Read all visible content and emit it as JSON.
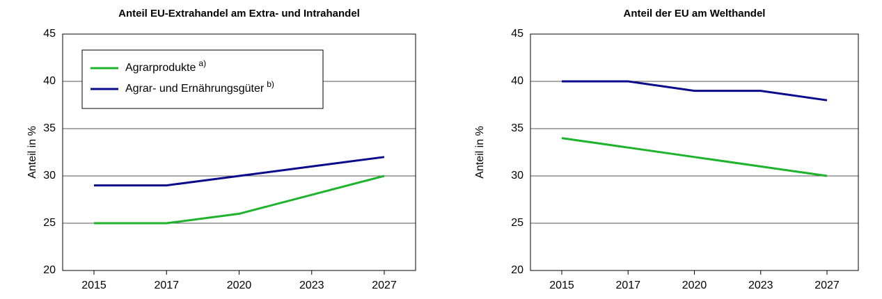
{
  "chart_data": [
    {
      "type": "line",
      "title": "Anteil EU-Extrahandel am Extra- und Intrahandel",
      "ylabel": "Anteil in %",
      "categories": [
        "2015",
        "2017",
        "2020",
        "2023",
        "2027"
      ],
      "series": [
        {
          "name": "Agrarprodukte",
          "superscript": "a)",
          "color": "#1db32a",
          "values": [
            25,
            25,
            26,
            28,
            30
          ]
        },
        {
          "name": "Agrar- und Ernährungsgüter",
          "superscript": "b)",
          "color": "#0a0a8c",
          "values": [
            29,
            29,
            30,
            31,
            32
          ]
        }
      ],
      "ylim": [
        20,
        45
      ],
      "yticks": [
        20,
        25,
        30,
        35,
        40,
        45
      ],
      "grid": true,
      "legend": "upper left"
    },
    {
      "type": "line",
      "title": "Anteil der EU am Welthandel",
      "ylabel": "Anteil in %",
      "categories": [
        "2015",
        "2017",
        "2020",
        "2023",
        "2027"
      ],
      "series": [
        {
          "color": "#1db32a",
          "values": [
            34,
            33,
            32,
            31,
            30
          ]
        },
        {
          "color": "#0a0a8c",
          "values": [
            40,
            40,
            39,
            39,
            38
          ]
        }
      ],
      "ylim": [
        20,
        45
      ],
      "yticks": [
        20,
        25,
        30,
        35,
        40,
        45
      ],
      "grid": true
    }
  ]
}
